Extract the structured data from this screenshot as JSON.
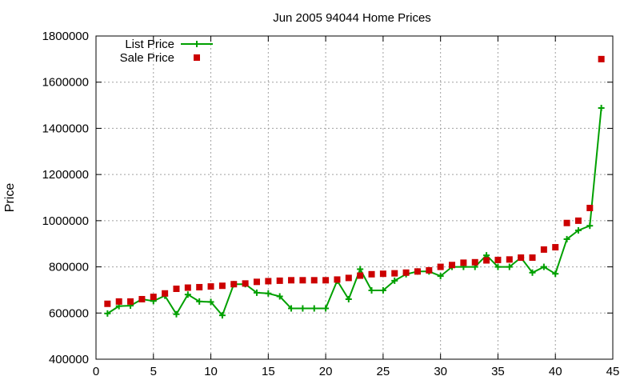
{
  "chart_data": {
    "type": "line",
    "title": "Jun 2005 94044 Home Prices",
    "xlabel": "",
    "ylabel": "Price",
    "xlim": [
      0,
      45
    ],
    "ylim": [
      400000,
      1800000
    ],
    "x_ticks": [
      0,
      5,
      10,
      15,
      20,
      25,
      30,
      35,
      40,
      45
    ],
    "y_ticks": [
      400000,
      600000,
      800000,
      1000000,
      1200000,
      1400000,
      1600000,
      1800000
    ],
    "grid": true,
    "legend_position": "top-left",
    "series": [
      {
        "name": "List Price",
        "style": "line-points",
        "color": "#00a000",
        "x": [
          1,
          2,
          3,
          4,
          5,
          6,
          7,
          8,
          9,
          10,
          11,
          12,
          13,
          14,
          15,
          16,
          17,
          18,
          19,
          20,
          21,
          22,
          23,
          24,
          25,
          26,
          27,
          28,
          29,
          30,
          31,
          32,
          33,
          34,
          35,
          36,
          37,
          38,
          39,
          40,
          41,
          42,
          43,
          44
        ],
        "y": [
          598000,
          630000,
          632000,
          660000,
          652000,
          675000,
          595000,
          680000,
          650000,
          648000,
          590000,
          725000,
          725000,
          688000,
          685000,
          672000,
          620000,
          620000,
          620000,
          620000,
          740000,
          660000,
          790000,
          698000,
          698000,
          740000,
          768000,
          780000,
          780000,
          760000,
          800000,
          800000,
          800000,
          850000,
          800000,
          800000,
          840000,
          775000,
          800000,
          770000,
          920000,
          958000,
          978000,
          1488000
        ]
      },
      {
        "name": "Sale Price",
        "style": "points",
        "color": "#cc0000",
        "x": [
          1,
          2,
          3,
          4,
          5,
          6,
          7,
          8,
          9,
          10,
          11,
          12,
          13,
          14,
          15,
          16,
          17,
          18,
          19,
          20,
          21,
          22,
          23,
          24,
          25,
          26,
          27,
          28,
          29,
          30,
          31,
          32,
          33,
          34,
          35,
          36,
          37,
          38,
          39,
          40,
          41,
          42,
          43,
          44
        ],
        "y": [
          640000,
          650000,
          650000,
          660000,
          670000,
          685000,
          705000,
          710000,
          712000,
          715000,
          718000,
          725000,
          728000,
          735000,
          738000,
          740000,
          742000,
          742000,
          742000,
          742000,
          745000,
          752000,
          762000,
          768000,
          770000,
          772000,
          775000,
          780000,
          785000,
          800000,
          808000,
          818000,
          820000,
          828000,
          830000,
          832000,
          840000,
          840000,
          875000,
          885000,
          990000,
          1000000,
          1055000,
          1700000
        ]
      }
    ]
  }
}
